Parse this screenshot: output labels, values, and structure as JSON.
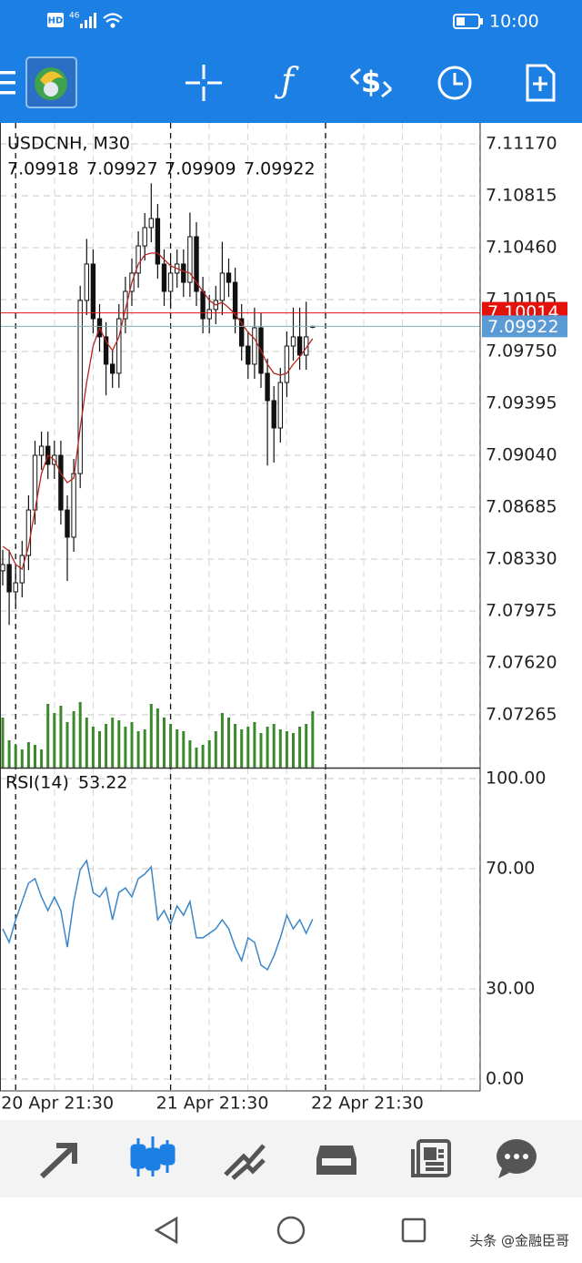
{
  "status_bar": {
    "hd": "HD",
    "network": "46",
    "time": "10:00"
  },
  "chart_data": [
    {
      "type": "candlestick",
      "title": "USDCNH, M30",
      "categories": [
        null,
        null,
        "20 Apr 21:30",
        null,
        null,
        null,
        null,
        null,
        null,
        null,
        null,
        null,
        null,
        null,
        null,
        null,
        null,
        null,
        null,
        null,
        null,
        null,
        null,
        null,
        null,
        null,
        "21 Apr 21:30",
        null,
        null,
        null,
        null,
        null,
        null,
        null,
        null,
        null,
        null,
        null,
        null,
        null,
        null,
        null,
        null,
        null,
        null,
        null,
        null,
        null,
        null,
        null,
        "22 Apr 21:30"
      ],
      "open": [
        7.0825,
        7.08293,
        7.08106,
        7.08168,
        7.08355,
        7.08666,
        7.0904,
        7.09102,
        7.08978,
        7.0904,
        7.08666,
        7.0848,
        7.08915,
        7.10099,
        7.10348,
        7.09974,
        7.0985,
        7.09663,
        7.09601,
        7.09974,
        7.10161,
        7.10286,
        7.10472,
        7.10597,
        7.10659,
        7.10348,
        7.10161,
        7.10286,
        7.10348,
        7.10223,
        7.10535,
        7.10161,
        7.09974,
        7.10037,
        7.10099,
        7.10286,
        7.10223,
        7.09974,
        7.09787,
        7.09663,
        7.09912,
        7.09601,
        7.09414,
        7.09227,
        7.09538,
        7.09787,
        7.0985,
        7.09725,
        7.09918,
        null,
        null
      ],
      "high": [
        7.08393,
        7.08393,
        7.08268,
        7.08455,
        7.08766,
        7.0914,
        7.09202,
        7.09202,
        7.0914,
        7.0914,
        7.08766,
        7.09015,
        7.10199,
        7.1052,
        7.10448,
        7.10074,
        7.0995,
        7.09763,
        7.10074,
        7.10261,
        7.10386,
        7.10572,
        7.10697,
        7.109,
        7.10759,
        7.10448,
        7.10386,
        7.10448,
        7.10448,
        7.107,
        7.10635,
        7.10261,
        7.10137,
        7.10199,
        7.105,
        7.10386,
        7.10323,
        7.10074,
        7.09887,
        7.1005,
        7.10012,
        7.09701,
        7.09514,
        7.09638,
        7.09887,
        7.1005,
        7.1005,
        7.1009,
        7.09927,
        null,
        null
      ],
      "low": [
        7.0815,
        7.0788,
        7.08006,
        7.08068,
        7.08255,
        7.08566,
        7.0894,
        7.08878,
        7.08878,
        7.08566,
        7.0818,
        7.0838,
        7.08815,
        7.09999,
        7.09874,
        7.0975,
        7.0945,
        7.09501,
        7.09501,
        7.09874,
        7.10061,
        7.10186,
        7.10372,
        7.10497,
        7.10248,
        7.10061,
        7.10061,
        7.10186,
        7.10123,
        7.10123,
        7.10061,
        7.09874,
        7.09874,
        7.09937,
        7.09999,
        7.10123,
        7.09874,
        7.09687,
        7.09563,
        7.09563,
        7.09501,
        7.0897,
        7.0899,
        7.09127,
        7.09438,
        7.09687,
        7.09625,
        7.09625,
        7.09909,
        null,
        null
      ],
      "close": [
        7.08293,
        7.08106,
        7.08168,
        7.08355,
        7.08666,
        7.0904,
        7.09102,
        7.08978,
        7.0904,
        7.08666,
        7.0848,
        7.08915,
        7.10099,
        7.10348,
        7.09974,
        7.0985,
        7.09663,
        7.09601,
        7.09974,
        7.10161,
        7.10286,
        7.10472,
        7.10597,
        7.10659,
        7.10348,
        7.10161,
        7.10286,
        7.10348,
        7.10223,
        7.10535,
        7.10161,
        7.09974,
        7.10037,
        7.10099,
        7.10286,
        7.10223,
        7.09974,
        7.09787,
        7.09663,
        7.09912,
        7.09601,
        7.09414,
        7.09227,
        7.09538,
        7.09787,
        7.0985,
        7.09725,
        7.0985,
        7.09922,
        null,
        null
      ],
      "ma": {
        "color": "#b3261e",
        "values": [
          7.08417,
          7.08386,
          7.08293,
          7.08262,
          7.08417,
          7.08666,
          7.08915,
          7.0904,
          7.09009,
          7.08915,
          7.08853,
          7.08884,
          7.09227,
          7.09538,
          7.09787,
          7.09912,
          7.09819,
          7.09756,
          7.0985,
          7.10037,
          7.10223,
          7.10348,
          7.1041,
          7.10423,
          7.10423,
          7.10379,
          7.10335,
          7.10317,
          7.10298,
          7.10286,
          7.10223,
          7.10161,
          7.10099,
          7.10068,
          7.10086,
          7.10049,
          7.10005,
          7.09943,
          7.09881,
          7.09837,
          7.09756,
          7.09663,
          7.09601,
          7.09588,
          7.09601,
          7.09663,
          7.09713,
          7.09775,
          7.09837,
          null,
          null
        ]
      },
      "volume": {
        "color": "#3a8a2a",
        "values": [
          55,
          30,
          25,
          20,
          28,
          25,
          20,
          70,
          60,
          68,
          50,
          62,
          72,
          55,
          45,
          40,
          48,
          55,
          52,
          45,
          50,
          40,
          42,
          70,
          65,
          55,
          48,
          42,
          40,
          30,
          22,
          25,
          30,
          40,
          60,
          55,
          48,
          42,
          45,
          50,
          38,
          45,
          48,
          42,
          40,
          38,
          45,
          48,
          62,
          null,
          null
        ]
      },
      "ask": {
        "value": 7.10014,
        "color": "#e3120b"
      },
      "bid_color": "#5b9bd5",
      "ylim": [
        7.06904,
        7.11313
      ],
      "yticks": [
        {
          "value": 7.1117,
          "label": "7.11170"
        },
        7.10815,
        {
          "value": 7.1046,
          "label": "7.10460"
        },
        7.10105,
        {
          "value": 7.0975,
          "label": "7.09750"
        },
        7.09395,
        {
          "value": 7.0904,
          "label": "7.09040"
        },
        7.08685,
        {
          "value": 7.0833,
          "label": "7.08330"
        },
        7.07975,
        {
          "value": 7.0762,
          "label": "7.07620"
        },
        7.07265
      ],
      "grid": true
    },
    {
      "type": "line",
      "title": "RSI(14)",
      "series": [
        {
          "color": "#3a86c8",
          "values": [
            50,
            45.5,
            53,
            59.1,
            65.2,
            66.7,
            60.6,
            56.1,
            60.6,
            56.1,
            43.9,
            59.1,
            69.7,
            72.7,
            62.1,
            60.6,
            63.6,
            53,
            62.1,
            63.6,
            60.6,
            66.7,
            68.2,
            70.6,
            53,
            56.1,
            51.5,
            57.6,
            54.5,
            59.1,
            47,
            47,
            48.5,
            50,
            53,
            50,
            43.9,
            39.4,
            47,
            45.5,
            37.9,
            36.4,
            40.9,
            47,
            54.5,
            50,
            53,
            48.5,
            53.22,
            null,
            null
          ]
        }
      ],
      "ylim": [
        0,
        100
      ],
      "yticks": [
        {
          "value": 100,
          "label": "100.00"
        },
        {
          "value": 70,
          "label": "70.00"
        },
        {
          "value": 30,
          "label": "30.00"
        },
        {
          "value": 0,
          "label": "0.00"
        }
      ],
      "grid": true
    }
  ],
  "watermark": "头条 @金融臣哥"
}
